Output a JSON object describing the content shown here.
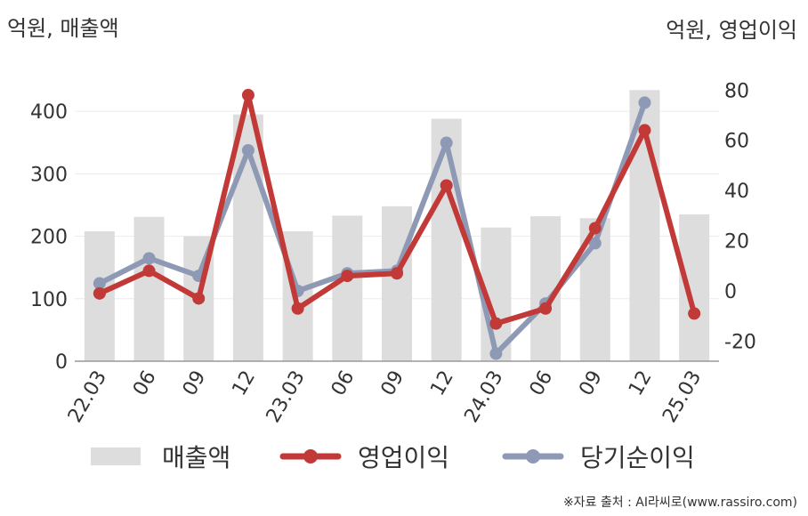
{
  "chart_data": {
    "type": "bar+line",
    "y_left_label": "억원, 매출액",
    "y_right_label": "억원, 영업이익",
    "categories": [
      "22.03",
      "06",
      "09",
      "12",
      "23.03",
      "06",
      "09",
      "12",
      "24.03",
      "06",
      "09",
      "12",
      "25.03"
    ],
    "y_left_ticks": [
      0,
      100,
      200,
      300,
      400
    ],
    "y_left_range": [
      0,
      450
    ],
    "y_right_ticks": [
      -20,
      0,
      20,
      40,
      60,
      80
    ],
    "y_right_range": [
      -28,
      84
    ],
    "series": [
      {
        "name": "매출액",
        "type": "bar",
        "axis": "left",
        "color": "#dddddd",
        "values": [
          208,
          231,
          200,
          395,
          208,
          233,
          248,
          388,
          214,
          232,
          229,
          434,
          235
        ]
      },
      {
        "name": "영업이익",
        "type": "line",
        "axis": "right",
        "color": "#c13a38",
        "values": [
          -1,
          8,
          -3,
          78,
          -7,
          6,
          7,
          42,
          -13,
          -7,
          25,
          64,
          -9
        ]
      },
      {
        "name": "당기순이익",
        "type": "line",
        "axis": "right",
        "color": "#8e9ab5",
        "values": [
          3,
          13,
          6,
          56,
          0,
          7,
          8,
          59,
          -25,
          -5,
          19,
          75,
          null
        ]
      }
    ]
  },
  "source_text": "※자료 출처 : AI라씨로(www.rassiro.com)"
}
